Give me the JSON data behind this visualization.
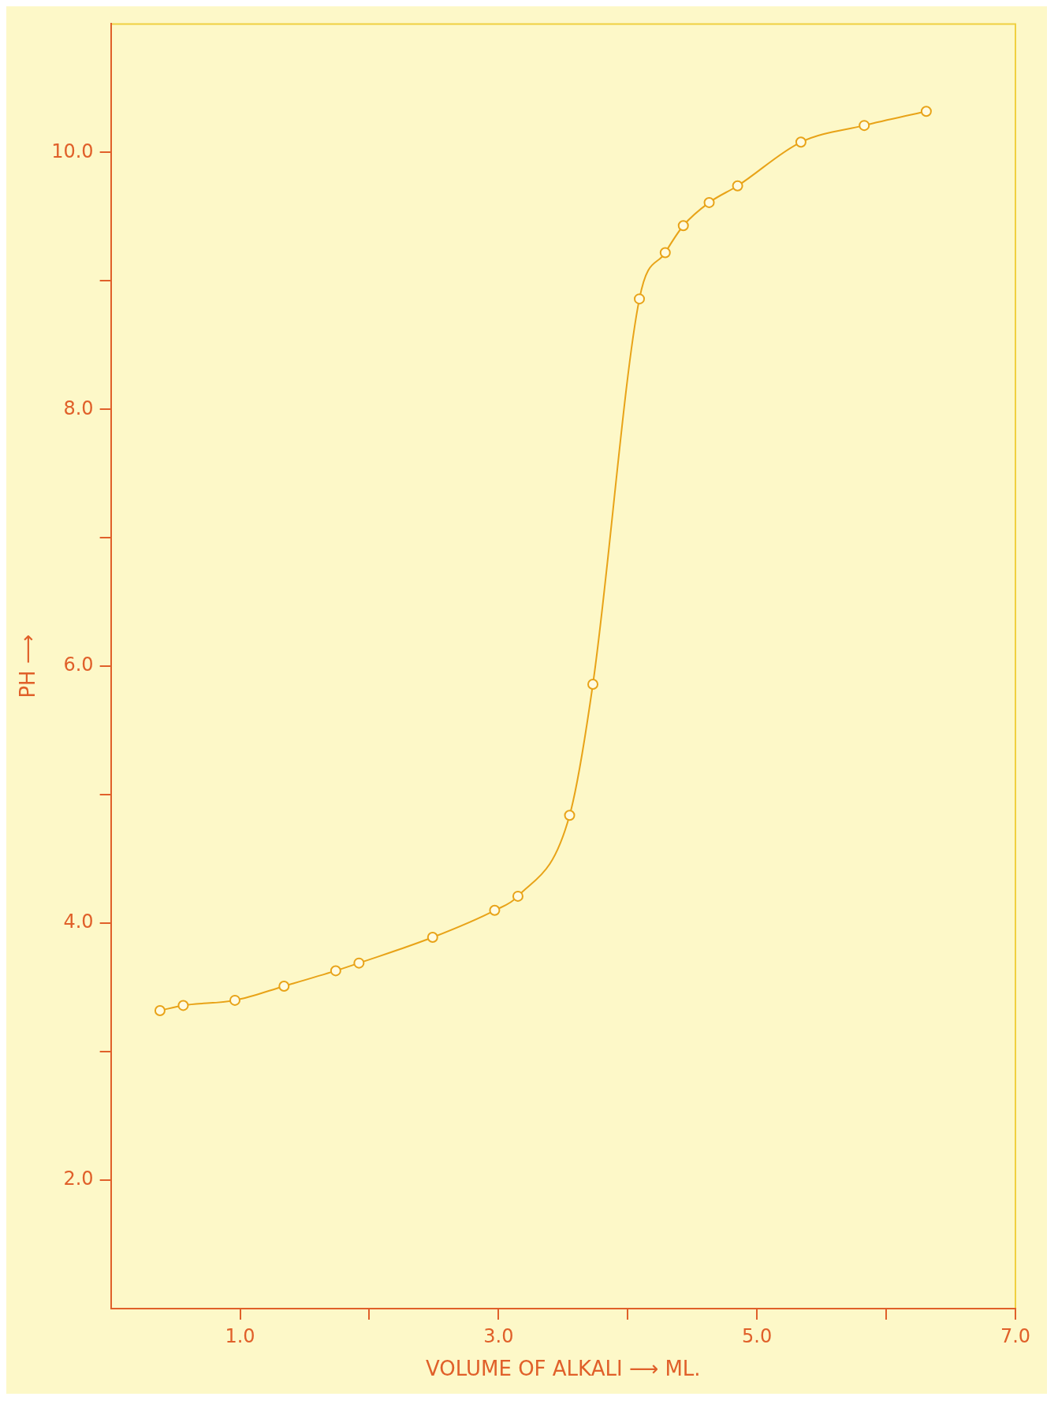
{
  "chart_data": {
    "type": "line",
    "xlabel": "VOLUME OF ALKALI ⟶ ML.",
    "ylabel": "PH ⟶",
    "x": [
      0.38,
      0.56,
      0.96,
      1.34,
      1.74,
      1.92,
      2.49,
      2.97,
      3.15,
      3.55,
      3.73,
      4.09,
      4.29,
      4.43,
      4.63,
      4.85,
      5.34,
      5.83,
      6.31
    ],
    "series": [
      {
        "color": "#e8a318",
        "values": [
          3.32,
          3.36,
          3.4,
          3.51,
          3.63,
          3.69,
          3.89,
          4.1,
          4.21,
          4.84,
          5.86,
          8.86,
          9.22,
          9.43,
          9.61,
          9.74,
          10.08,
          10.21,
          10.32
        ]
      }
    ],
    "xlim": [
      0,
      7
    ],
    "ylim": [
      1,
      11
    ],
    "xticks": [
      {
        "value": 1,
        "label": "1.0"
      },
      {
        "value": 2,
        "label": null
      },
      {
        "value": 3,
        "label": "3.0"
      },
      {
        "value": 4,
        "label": null
      },
      {
        "value": 5,
        "label": "5.0"
      },
      {
        "value": 6,
        "label": null
      },
      {
        "value": 7,
        "label": "7.0"
      }
    ],
    "yticks": [
      {
        "value": 2,
        "label": "2.0"
      },
      {
        "value": 3,
        "label": null
      },
      {
        "value": 4,
        "label": "4.0"
      },
      {
        "value": 5,
        "label": null
      },
      {
        "value": 6,
        "label": "6.0"
      },
      {
        "value": 7,
        "label": null
      },
      {
        "value": 8,
        "label": "8.0"
      },
      {
        "value": 9,
        "label": null
      },
      {
        "value": 10,
        "label": "10.0"
      }
    ],
    "marker": "circle",
    "grid": false,
    "legend": false
  }
}
